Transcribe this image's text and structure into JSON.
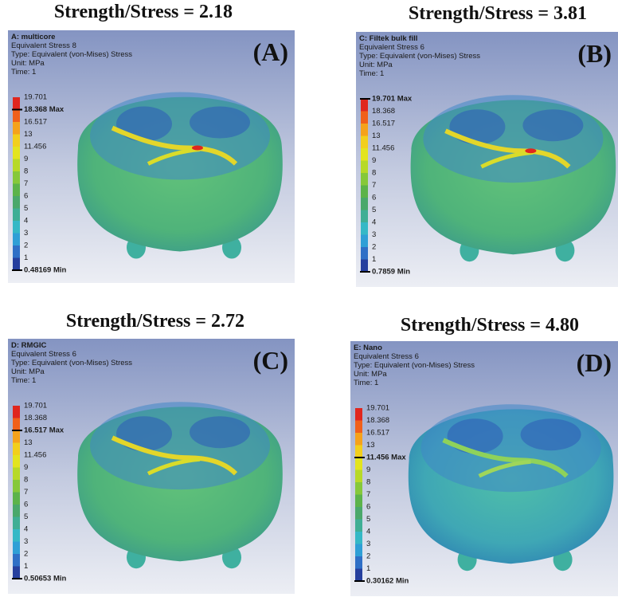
{
  "panels": [
    {
      "title": "Strength/Stress = 2.18",
      "label": "(A)",
      "header": [
        "A: multicore",
        "Equivalent Stress 8",
        "Type: Equivalent (von-Mises) Stress",
        "Unit: MPa",
        "Time: 1"
      ],
      "legend": [
        {
          "text": "19.701"
        },
        {
          "text": "18.368 Max",
          "bold": true
        },
        {
          "text": "16.517"
        },
        {
          "text": "13"
        },
        {
          "text": "11.456"
        },
        {
          "text": "9"
        },
        {
          "text": "8"
        },
        {
          "text": "7"
        },
        {
          "text": "6"
        },
        {
          "text": "5"
        },
        {
          "text": "4"
        },
        {
          "text": "3"
        },
        {
          "text": "2"
        },
        {
          "text": "1"
        },
        {
          "text": "0.48169 Min",
          "bold": true
        }
      ]
    },
    {
      "title": "Strength/Stress = 3.81",
      "label": "(B)",
      "header": [
        "C: Filtek bulk fill",
        "Equivalent Stress 6",
        "Type: Equivalent (von-Mises) Stress",
        "Unit: MPa",
        "Time: 1"
      ],
      "legend": [
        {
          "text": "19.701 Max",
          "bold": true
        },
        {
          "text": "18.368"
        },
        {
          "text": "16.517"
        },
        {
          "text": "13"
        },
        {
          "text": "11.456"
        },
        {
          "text": "9"
        },
        {
          "text": "8"
        },
        {
          "text": "7"
        },
        {
          "text": "6"
        },
        {
          "text": "5"
        },
        {
          "text": "4"
        },
        {
          "text": "3"
        },
        {
          "text": "2"
        },
        {
          "text": "1"
        },
        {
          "text": "0.7859 Min",
          "bold": true
        }
      ]
    },
    {
      "title": "Strength/Stress = 2.72",
      "label": "(C)",
      "header": [
        "D: RMGIC",
        "Equivalent Stress 6",
        "Type: Equivalent (von-Mises) Stress",
        "Unit: MPa",
        "Time: 1"
      ],
      "legend": [
        {
          "text": "19.701"
        },
        {
          "text": "18.368"
        },
        {
          "text": "16.517 Max",
          "bold": true
        },
        {
          "text": "13"
        },
        {
          "text": "11.456"
        },
        {
          "text": "9"
        },
        {
          "text": "8"
        },
        {
          "text": "7"
        },
        {
          "text": "6"
        },
        {
          "text": "5"
        },
        {
          "text": "4"
        },
        {
          "text": "3"
        },
        {
          "text": "2"
        },
        {
          "text": "1"
        },
        {
          "text": "0.50653 Min",
          "bold": true
        }
      ]
    },
    {
      "title": "Strength/Stress = 4.80",
      "label": "(D)",
      "header": [
        "E: Nano",
        "Equivalent Stress 6",
        "Type: Equivalent (von-Mises) Stress",
        "Unit: MPa",
        "Time: 1"
      ],
      "legend": [
        {
          "text": "19.701"
        },
        {
          "text": "18.368"
        },
        {
          "text": "16.517"
        },
        {
          "text": "13"
        },
        {
          "text": "11.456 Max",
          "bold": true
        },
        {
          "text": "9"
        },
        {
          "text": "8"
        },
        {
          "text": "7"
        },
        {
          "text": "6"
        },
        {
          "text": "5"
        },
        {
          "text": "4"
        },
        {
          "text": "3"
        },
        {
          "text": "2"
        },
        {
          "text": "1"
        },
        {
          "text": "0.30162 Min",
          "bold": true
        }
      ]
    }
  ]
}
